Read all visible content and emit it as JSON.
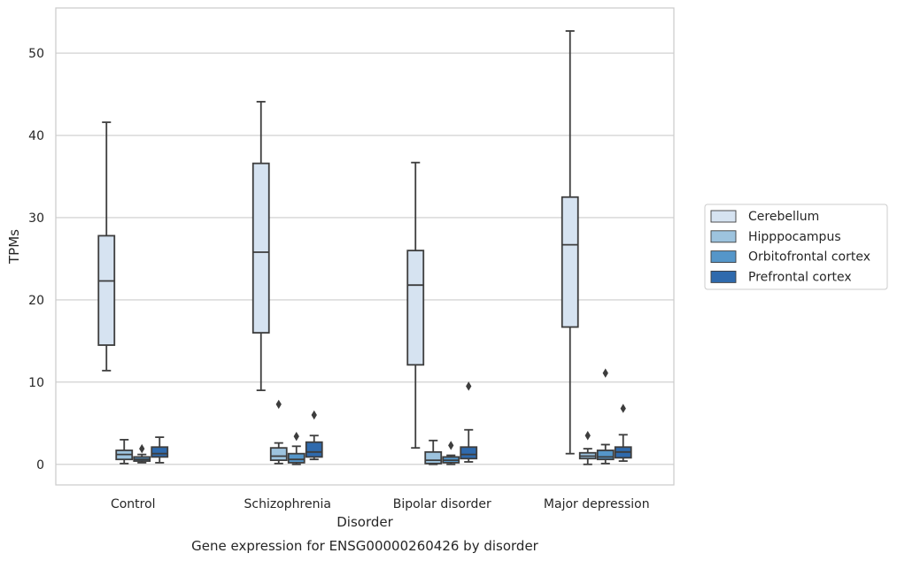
{
  "chart_data": {
    "type": "box",
    "title": "",
    "caption": "Gene expression for ENSG00000260426 by disorder",
    "xlabel": "Disorder",
    "ylabel": "TPMs",
    "ylim": [
      -2.5,
      55.5
    ],
    "yticks": [
      0,
      10,
      20,
      30,
      40,
      50
    ],
    "grid": "horizontal",
    "legend_position": "right",
    "categories": [
      "Control",
      "Schizophrenia",
      "Bipolar disorder",
      "Major depression"
    ],
    "series": [
      {
        "name": "Cerebellum",
        "color": "#d6e3f1",
        "boxes": [
          {
            "whisker_low": 11.4,
            "q1": 14.5,
            "median": 22.3,
            "q3": 27.8,
            "whisker_high": 41.6,
            "outliers": []
          },
          {
            "whisker_low": 9.0,
            "q1": 16.0,
            "median": 25.8,
            "q3": 36.6,
            "whisker_high": 44.1,
            "outliers": []
          },
          {
            "whisker_low": 2.0,
            "q1": 12.1,
            "median": 21.8,
            "q3": 26.0,
            "whisker_high": 36.7,
            "outliers": []
          },
          {
            "whisker_low": 1.3,
            "q1": 16.7,
            "median": 26.7,
            "q3": 32.5,
            "whisker_high": 52.7,
            "outliers": []
          }
        ]
      },
      {
        "name": "Hipppocampus",
        "color": "#9dc3de",
        "boxes": [
          {
            "whisker_low": 0.1,
            "q1": 0.6,
            "median": 1.2,
            "q3": 1.7,
            "whisker_high": 3.0,
            "outliers": []
          },
          {
            "whisker_low": 0.1,
            "q1": 0.5,
            "median": 1.0,
            "q3": 2.0,
            "whisker_high": 2.6,
            "outliers": [
              7.3
            ]
          },
          {
            "whisker_low": 0.0,
            "q1": 0.1,
            "median": 0.5,
            "q3": 1.5,
            "whisker_high": 2.9,
            "outliers": []
          },
          {
            "whisker_low": 0.0,
            "q1": 0.7,
            "median": 1.0,
            "q3": 1.4,
            "whisker_high": 1.9,
            "outliers": [
              3.5
            ]
          }
        ]
      },
      {
        "name": "Orbitofrontal cortex",
        "color": "#5596c9",
        "boxes": [
          {
            "whisker_low": 0.2,
            "q1": 0.4,
            "median": 0.6,
            "q3": 0.9,
            "whisker_high": 1.2,
            "outliers": [
              1.9
            ]
          },
          {
            "whisker_low": 0.0,
            "q1": 0.2,
            "median": 0.6,
            "q3": 1.3,
            "whisker_high": 2.2,
            "outliers": [
              3.4
            ]
          },
          {
            "whisker_low": 0.0,
            "q1": 0.2,
            "median": 0.5,
            "q3": 0.9,
            "whisker_high": 1.1,
            "outliers": [
              2.3
            ]
          },
          {
            "whisker_low": 0.1,
            "q1": 0.6,
            "median": 0.9,
            "q3": 1.7,
            "whisker_high": 2.4,
            "outliers": [
              11.1
            ]
          }
        ]
      },
      {
        "name": "Prefrontal cortex",
        "color": "#2f6aad",
        "boxes": [
          {
            "whisker_low": 0.2,
            "q1": 0.9,
            "median": 1.3,
            "q3": 2.1,
            "whisker_high": 3.3,
            "outliers": []
          },
          {
            "whisker_low": 0.6,
            "q1": 0.9,
            "median": 1.5,
            "q3": 2.7,
            "whisker_high": 3.5,
            "outliers": [
              6.0
            ]
          },
          {
            "whisker_low": 0.3,
            "q1": 0.7,
            "median": 1.2,
            "q3": 2.1,
            "whisker_high": 4.2,
            "outliers": [
              9.5
            ]
          },
          {
            "whisker_low": 0.4,
            "q1": 0.8,
            "median": 1.5,
            "q3": 2.1,
            "whisker_high": 3.6,
            "outliers": [
              6.8
            ]
          }
        ]
      }
    ]
  }
}
